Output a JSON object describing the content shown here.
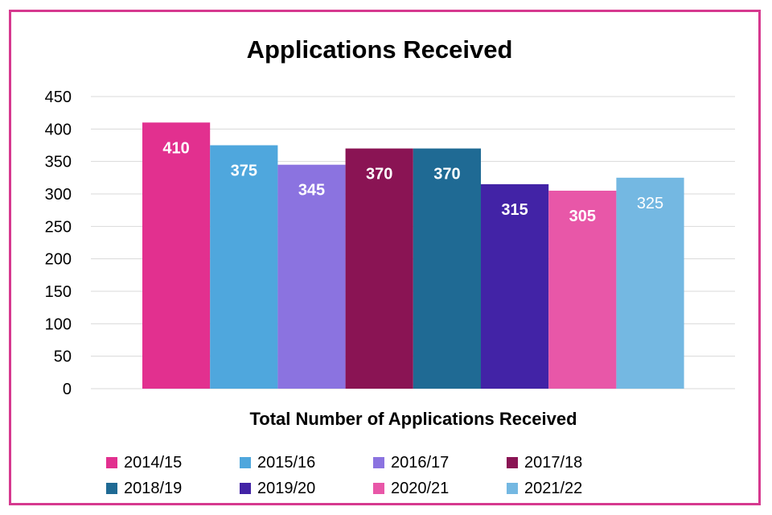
{
  "chart_data": {
    "type": "bar",
    "title": "Applications Received",
    "xlabel": "Total Number of Applications Received",
    "ylabel": "",
    "ylim": [
      0,
      450
    ],
    "yticks": [
      0,
      50,
      100,
      150,
      200,
      250,
      300,
      350,
      400,
      450
    ],
    "grid": true,
    "legend_position": "bottom",
    "categories": [
      "Total Number of Applications Received"
    ],
    "series": [
      {
        "name": "2014/15",
        "value": 410,
        "color": "#e2308f",
        "label_color": "#ffffff"
      },
      {
        "name": "2015/16",
        "value": 375,
        "color": "#4fa7dd",
        "label_color": "#ffffff"
      },
      {
        "name": "2016/17",
        "value": 345,
        "color": "#8b73e0",
        "label_color": "#ffffff"
      },
      {
        "name": "2017/18",
        "value": 370,
        "color": "#8a1454",
        "label_color": "#ffffff"
      },
      {
        "name": "2018/19",
        "value": 370,
        "color": "#1f6a94",
        "label_color": "#ffffff"
      },
      {
        "name": "2019/20",
        "value": 315,
        "color": "#4223a6",
        "label_color": "#ffffff"
      },
      {
        "name": "2020/21",
        "value": 305,
        "color": "#e857a8",
        "label_color": "#ffffff"
      },
      {
        "name": "2021/22",
        "value": 325,
        "color": "#74b8e2",
        "label_color": "#ffffff"
      }
    ]
  },
  "colors": {
    "frame": "#d6398f",
    "grid": "#d9d9d9"
  }
}
